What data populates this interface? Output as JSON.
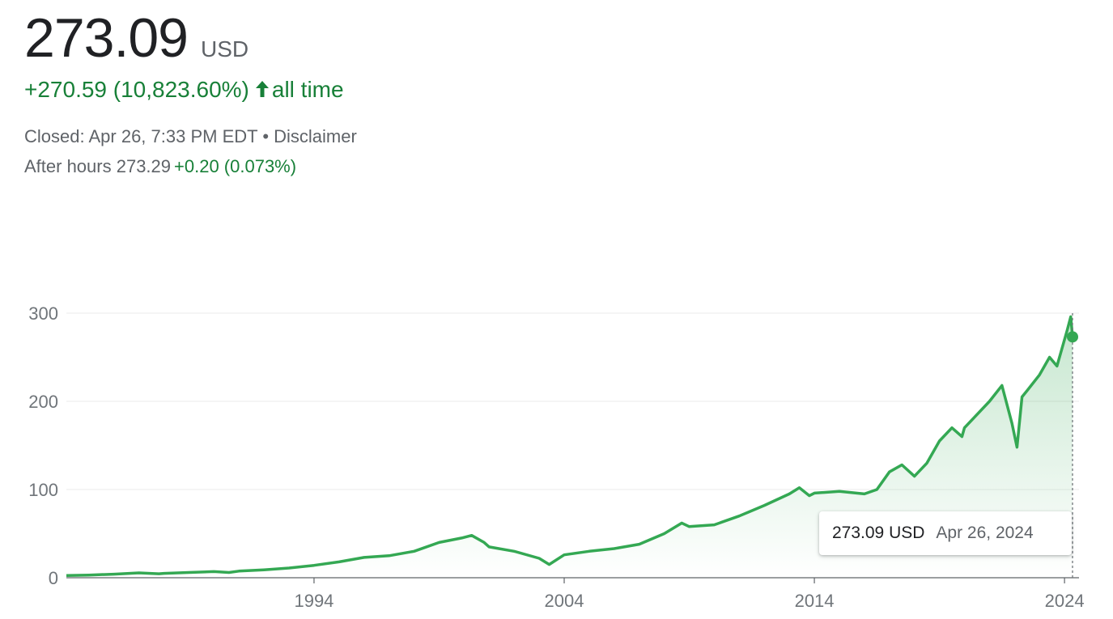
{
  "quote": {
    "price": "273.09",
    "currency": "USD",
    "change": "+270.59 (10,823.60%)",
    "period": "all time",
    "closed_text": "Closed: Apr 26, 7:33 PM EDT",
    "separator": "•",
    "disclaimer": "Disclaimer",
    "after_hours_label": "After hours 273.29",
    "after_hours_change": "+0.20 (0.073%)"
  },
  "tooltip": {
    "price": "273.09 USD",
    "date": "Apr 26, 2024"
  },
  "colors": {
    "line": "#34a853",
    "positive": "#188038",
    "text": "#202124",
    "muted": "#5f6368",
    "grid": "#ebebeb"
  },
  "chart_data": {
    "type": "line",
    "title": "",
    "xlabel": "",
    "ylabel": "",
    "x_ticks": [
      "1994",
      "2004",
      "2014",
      "2024"
    ],
    "y_ticks": [
      0,
      100,
      200,
      300
    ],
    "ylim": [
      0,
      300
    ],
    "xlim": [
      1984.1,
      2024.32
    ],
    "grid": "horizontal",
    "series": [
      {
        "values": [
          [
            1984.1,
            2.5
          ],
          [
            1985,
            3
          ],
          [
            1986,
            4
          ],
          [
            1987,
            5.5
          ],
          [
            1987.8,
            4.5
          ],
          [
            1988,
            5
          ],
          [
            1989,
            6
          ],
          [
            1990,
            7
          ],
          [
            1990.6,
            6
          ],
          [
            1991,
            7.5
          ],
          [
            1992,
            9
          ],
          [
            1993,
            11
          ],
          [
            1994,
            14
          ],
          [
            1995,
            18
          ],
          [
            1996,
            23
          ],
          [
            1997,
            25
          ],
          [
            1998,
            30
          ],
          [
            1999,
            40
          ],
          [
            1999.9,
            45
          ],
          [
            2000.3,
            48
          ],
          [
            2000.8,
            40
          ],
          [
            2001,
            35
          ],
          [
            2002,
            30
          ],
          [
            2003,
            22
          ],
          [
            2003.4,
            15
          ],
          [
            2004,
            26
          ],
          [
            2005,
            30
          ],
          [
            2006,
            33
          ],
          [
            2007,
            38
          ],
          [
            2008,
            50
          ],
          [
            2008.7,
            62
          ],
          [
            2009,
            58
          ],
          [
            2010,
            60
          ],
          [
            2011,
            70
          ],
          [
            2012,
            82
          ],
          [
            2013,
            95
          ],
          [
            2013.4,
            102
          ],
          [
            2013.8,
            93
          ],
          [
            2014,
            96
          ],
          [
            2015,
            98
          ],
          [
            2016,
            95
          ],
          [
            2016.5,
            100
          ],
          [
            2017,
            120
          ],
          [
            2017.5,
            128
          ],
          [
            2018,
            115
          ],
          [
            2018.5,
            130
          ],
          [
            2019,
            155
          ],
          [
            2019.5,
            170
          ],
          [
            2019.9,
            160
          ],
          [
            2020,
            170
          ],
          [
            2021,
            200
          ],
          [
            2021.5,
            218
          ],
          [
            2021.9,
            175
          ],
          [
            2022.1,
            148
          ],
          [
            2022.3,
            205
          ],
          [
            2022.5,
            212
          ],
          [
            2023,
            230
          ],
          [
            2023.4,
            250
          ],
          [
            2023.7,
            240
          ],
          [
            2024.1,
            280
          ],
          [
            2024.25,
            296
          ],
          [
            2024.32,
            273.09
          ]
        ]
      }
    ]
  }
}
